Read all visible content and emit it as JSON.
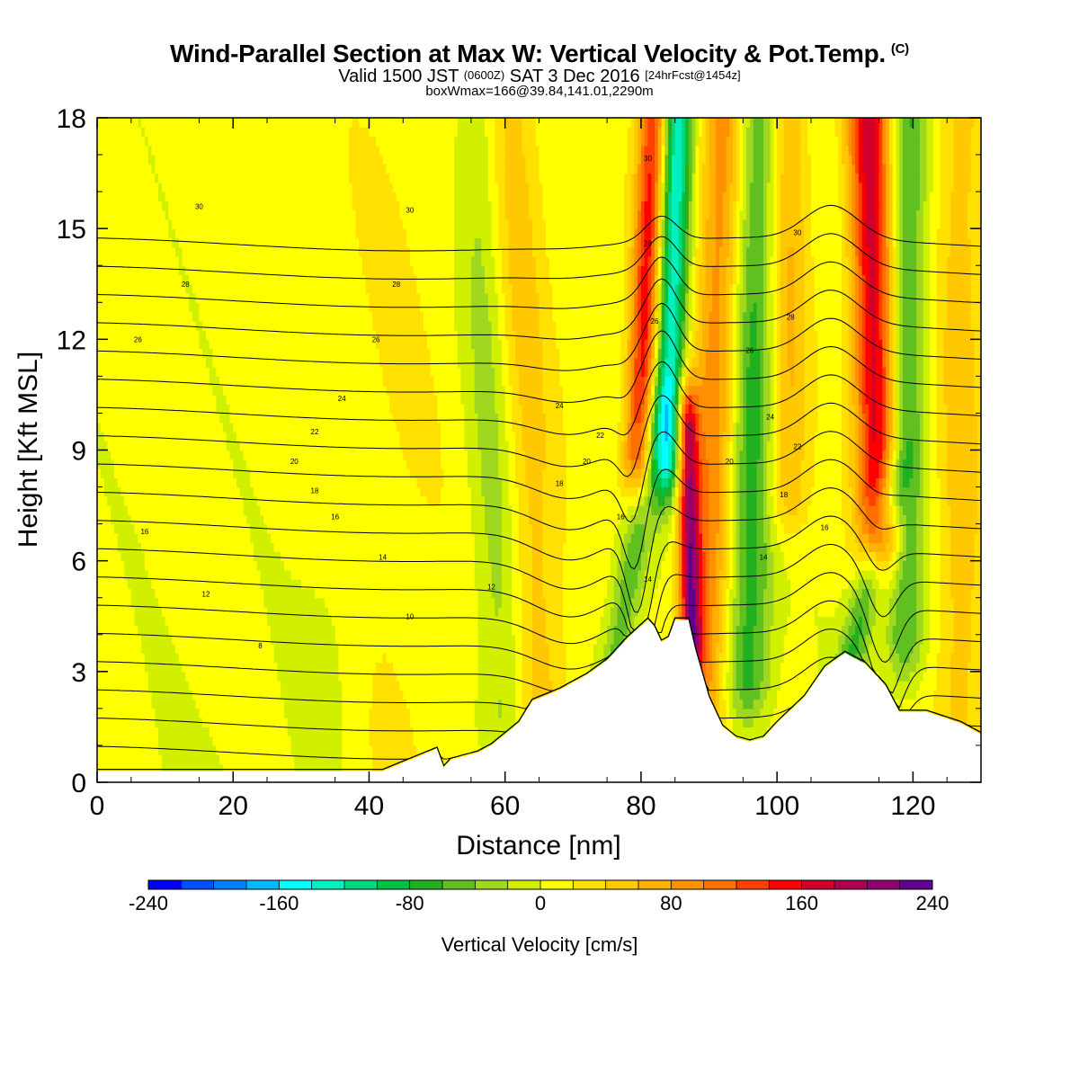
{
  "title": {
    "main": "Wind-Parallel Section at Max W: Vertical Velocity & Pot.Temp.",
    "copyright": "(C)",
    "valid_prefix": "Valid 1500 JST",
    "valid_z": "(0600Z)",
    "valid_date": "SAT 3 Dec 2016",
    "valid_fcst": "[24hrFcst@1454z]",
    "box": "boxWmax=166@39.84,141.01,2290m"
  },
  "chart_data": {
    "type": "heatmap",
    "xlabel": "Distance [nm]",
    "ylabel": "Height [Kft MSL]",
    "xlim": [
      0,
      130
    ],
    "ylim": [
      0,
      18
    ],
    "x_ticks": [
      0,
      20,
      40,
      60,
      80,
      100,
      120
    ],
    "y_ticks": [
      0,
      3,
      6,
      9,
      12,
      15,
      18
    ],
    "colorbar": {
      "label": "Vertical Velocity [cm/s]",
      "range": [
        -240,
        240
      ],
      "step": 20,
      "tick_labels": [
        -240,
        -160,
        -80,
        0,
        80,
        160,
        240
      ],
      "colors": [
        "#0000ff",
        "#0050ff",
        "#0080ff",
        "#00b8ff",
        "#00ffff",
        "#00f0c0",
        "#00d880",
        "#00c040",
        "#20b020",
        "#60c020",
        "#a0d820",
        "#d0f000",
        "#ffff00",
        "#ffe000",
        "#ffc800",
        "#ffb000",
        "#ff9000",
        "#ff7000",
        "#ff4000",
        "#ff0000",
        "#d00028",
        "#b00050",
        "#900070",
        "#600090"
      ]
    },
    "velocity_features": [
      {
        "x": 84,
        "value": -150
      },
      {
        "x": 81,
        "value": 150
      },
      {
        "x": 87,
        "value": 170
      },
      {
        "x": 96,
        "value": -80
      },
      {
        "x": 114,
        "value": 160
      },
      {
        "x": 119,
        "value": -70
      },
      {
        "x": 62,
        "value": -40
      },
      {
        "x": 66,
        "value": 40
      }
    ],
    "terrain": {
      "x": [
        0,
        5,
        42,
        46,
        50,
        51,
        52,
        56,
        58,
        62,
        64,
        68,
        72,
        75,
        78,
        81,
        82,
        83,
        84,
        85,
        87,
        88,
        90,
        92,
        94,
        96,
        98,
        100,
        104,
        107,
        110,
        113,
        116,
        118,
        122,
        127,
        130
      ],
      "height": [
        0.3,
        0.3,
        0.3,
        0.6,
        0.9,
        0.4,
        0.6,
        0.8,
        1.0,
        1.6,
        2.2,
        2.5,
        2.9,
        3.3,
        3.9,
        4.4,
        4.2,
        3.8,
        3.9,
        4.4,
        4.4,
        3.6,
        2.3,
        1.5,
        1.2,
        1.1,
        1.2,
        1.6,
        2.3,
        3.1,
        3.5,
        3.2,
        2.6,
        1.9,
        1.9,
        1.6,
        1.3
      ]
    },
    "theta_contours": {
      "levels": [
        6,
        8,
        10,
        12,
        14,
        16,
        18,
        20,
        22,
        24,
        26,
        28,
        30,
        32
      ],
      "labels": [
        {
          "text": "8",
          "x": 24,
          "y": 3.7
        },
        {
          "text": "10",
          "x": 46,
          "y": 4.5
        },
        {
          "text": "12",
          "x": 16,
          "y": 5.1
        },
        {
          "text": "12",
          "x": 58,
          "y": 5.3
        },
        {
          "text": "14",
          "x": 42,
          "y": 6.1
        },
        {
          "text": "14",
          "x": 81,
          "y": 5.5
        },
        {
          "text": "14",
          "x": 98,
          "y": 6.1
        },
        {
          "text": "16",
          "x": 7,
          "y": 6.8
        },
        {
          "text": "16",
          "x": 35,
          "y": 7.2
        },
        {
          "text": "16",
          "x": 77,
          "y": 7.2
        },
        {
          "text": "16",
          "x": 107,
          "y": 6.9
        },
        {
          "text": "18",
          "x": 32,
          "y": 7.9
        },
        {
          "text": "18",
          "x": 68,
          "y": 8.1
        },
        {
          "text": "18",
          "x": 101,
          "y": 7.8
        },
        {
          "text": "20",
          "x": 29,
          "y": 8.7
        },
        {
          "text": "20",
          "x": 72,
          "y": 8.7
        },
        {
          "text": "20",
          "x": 93,
          "y": 8.7
        },
        {
          "text": "22",
          "x": 32,
          "y": 9.5
        },
        {
          "text": "22",
          "x": 74,
          "y": 9.4
        },
        {
          "text": "22",
          "x": 103,
          "y": 9.1
        },
        {
          "text": "24",
          "x": 36,
          "y": 10.4
        },
        {
          "text": "24",
          "x": 68,
          "y": 10.2
        },
        {
          "text": "24",
          "x": 99,
          "y": 9.9
        },
        {
          "text": "26",
          "x": 6,
          "y": 12.0
        },
        {
          "text": "26",
          "x": 41,
          "y": 12.0
        },
        {
          "text": "26",
          "x": 96,
          "y": 11.7
        },
        {
          "text": "26",
          "x": 82,
          "y": 12.5
        },
        {
          "text": "28",
          "x": 13,
          "y": 13.5
        },
        {
          "text": "28",
          "x": 44,
          "y": 13.5
        },
        {
          "text": "28",
          "x": 102,
          "y": 12.6
        },
        {
          "text": "28",
          "x": 81,
          "y": 14.6
        },
        {
          "text": "30",
          "x": 15,
          "y": 15.6
        },
        {
          "text": "30",
          "x": 46,
          "y": 15.5
        },
        {
          "text": "30",
          "x": 103,
          "y": 14.9
        },
        {
          "text": "30",
          "x": 81,
          "y": 16.9
        }
      ]
    }
  }
}
